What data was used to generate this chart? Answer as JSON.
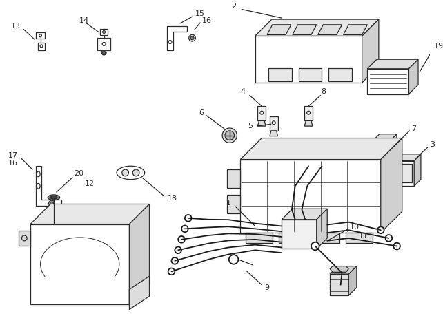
{
  "background_color": "#ffffff",
  "fig_width": 6.42,
  "fig_height": 4.75,
  "dpi": 100,
  "lc": "#2a2a2a"
}
